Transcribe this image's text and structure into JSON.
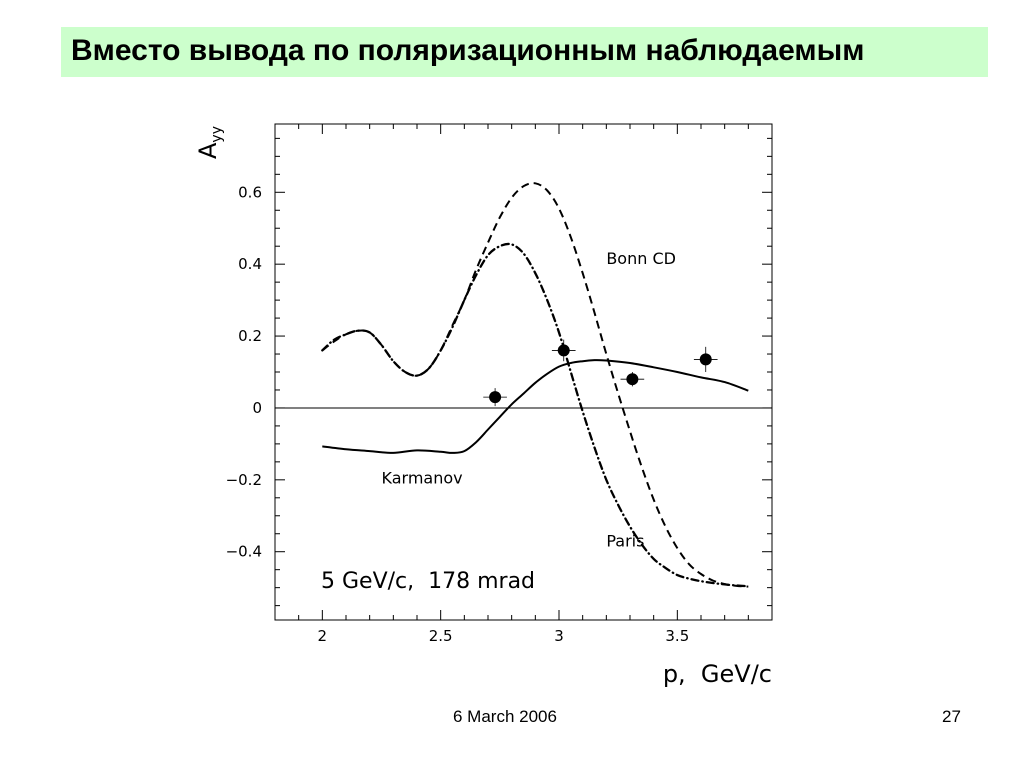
{
  "slide": {
    "title": "Вместо вывода по поляризационным наблюдаемым",
    "date": "6 March 2006",
    "page_number": "27"
  },
  "chart_data": {
    "type": "line",
    "title": "",
    "xlabel": "p,  GeV/c",
    "ylabel_main": "A",
    "ylabel_sub": "yy",
    "annotation": "5 GeV/c,  178 mrad",
    "xlim": [
      1.8,
      3.9
    ],
    "ylim": [
      -0.59,
      0.79
    ],
    "x_ticks": [
      2,
      2.5,
      3,
      3.5
    ],
    "x_tick_labels": [
      "2",
      "2.5",
      "3",
      "3.5"
    ],
    "y_ticks": [
      -0.4,
      -0.2,
      0,
      0.2,
      0.4,
      0.6
    ],
    "y_tick_labels": [
      "−0.4",
      "−0.2",
      "0",
      "0.2",
      "0.4",
      "0.6"
    ],
    "grid": false,
    "zero_line": true,
    "series": [
      {
        "name": "Bonn CD",
        "style": "dashed",
        "label_at": [
          3.2,
          0.4
        ],
        "points": [
          [
            2.0,
            0.16
          ],
          [
            2.05,
            0.185
          ],
          [
            2.1,
            0.205
          ],
          [
            2.15,
            0.215
          ],
          [
            2.2,
            0.21
          ],
          [
            2.25,
            0.175
          ],
          [
            2.3,
            0.13
          ],
          [
            2.35,
            0.1
          ],
          [
            2.4,
            0.09
          ],
          [
            2.45,
            0.11
          ],
          [
            2.5,
            0.16
          ],
          [
            2.55,
            0.23
          ],
          [
            2.6,
            0.3
          ],
          [
            2.65,
            0.385
          ],
          [
            2.7,
            0.46
          ],
          [
            2.75,
            0.53
          ],
          [
            2.8,
            0.585
          ],
          [
            2.85,
            0.617
          ],
          [
            2.9,
            0.625
          ],
          [
            2.95,
            0.605
          ],
          [
            3.0,
            0.555
          ],
          [
            3.05,
            0.475
          ],
          [
            3.1,
            0.375
          ],
          [
            3.15,
            0.265
          ],
          [
            3.2,
            0.15
          ],
          [
            3.25,
            0.04
          ],
          [
            3.3,
            -0.065
          ],
          [
            3.35,
            -0.165
          ],
          [
            3.4,
            -0.255
          ],
          [
            3.45,
            -0.33
          ],
          [
            3.5,
            -0.39
          ],
          [
            3.55,
            -0.435
          ],
          [
            3.6,
            -0.462
          ],
          [
            3.65,
            -0.48
          ],
          [
            3.7,
            -0.49
          ],
          [
            3.75,
            -0.495
          ],
          [
            3.8,
            -0.497
          ]
        ]
      },
      {
        "name": "Paris",
        "style": "dash-dot",
        "label_at": [
          3.2,
          -0.385
        ],
        "points": [
          [
            2.0,
            0.16
          ],
          [
            2.05,
            0.19
          ],
          [
            2.1,
            0.205
          ],
          [
            2.15,
            0.215
          ],
          [
            2.2,
            0.21
          ],
          [
            2.25,
            0.175
          ],
          [
            2.3,
            0.13
          ],
          [
            2.35,
            0.1
          ],
          [
            2.4,
            0.09
          ],
          [
            2.45,
            0.11
          ],
          [
            2.5,
            0.16
          ],
          [
            2.55,
            0.225
          ],
          [
            2.6,
            0.3
          ],
          [
            2.65,
            0.37
          ],
          [
            2.7,
            0.425
          ],
          [
            2.75,
            0.45
          ],
          [
            2.8,
            0.455
          ],
          [
            2.85,
            0.43
          ],
          [
            2.9,
            0.375
          ],
          [
            2.95,
            0.3
          ],
          [
            3.0,
            0.21
          ],
          [
            3.05,
            0.1
          ],
          [
            3.1,
            -0.01
          ],
          [
            3.15,
            -0.11
          ],
          [
            3.2,
            -0.2
          ],
          [
            3.25,
            -0.27
          ],
          [
            3.3,
            -0.33
          ],
          [
            3.35,
            -0.38
          ],
          [
            3.4,
            -0.42
          ],
          [
            3.45,
            -0.445
          ],
          [
            3.5,
            -0.465
          ],
          [
            3.55,
            -0.475
          ],
          [
            3.6,
            -0.482
          ],
          [
            3.65,
            -0.487
          ],
          [
            3.7,
            -0.491
          ],
          [
            3.75,
            -0.494
          ],
          [
            3.8,
            -0.496
          ]
        ]
      },
      {
        "name": "Karmanov",
        "style": "solid",
        "label_at": [
          2.25,
          -0.21
        ],
        "points": [
          [
            2.0,
            -0.107
          ],
          [
            2.1,
            -0.115
          ],
          [
            2.2,
            -0.12
          ],
          [
            2.3,
            -0.125
          ],
          [
            2.4,
            -0.118
          ],
          [
            2.5,
            -0.122
          ],
          [
            2.55,
            -0.125
          ],
          [
            2.6,
            -0.12
          ],
          [
            2.65,
            -0.095
          ],
          [
            2.7,
            -0.06
          ],
          [
            2.75,
            -0.025
          ],
          [
            2.8,
            0.01
          ],
          [
            2.85,
            0.04
          ],
          [
            2.9,
            0.07
          ],
          [
            2.95,
            0.095
          ],
          [
            3.0,
            0.115
          ],
          [
            3.05,
            0.125
          ],
          [
            3.1,
            0.13
          ],
          [
            3.15,
            0.133
          ],
          [
            3.2,
            0.132
          ],
          [
            3.3,
            0.125
          ],
          [
            3.4,
            0.113
          ],
          [
            3.5,
            0.1
          ],
          [
            3.6,
            0.085
          ],
          [
            3.7,
            0.072
          ],
          [
            3.8,
            0.048
          ]
        ]
      }
    ],
    "data_points": [
      {
        "x": 2.73,
        "y": 0.03,
        "xerr": 0.05,
        "yerr": 0.025
      },
      {
        "x": 3.02,
        "y": 0.16,
        "xerr": 0.05,
        "yerr": 0.03
      },
      {
        "x": 3.31,
        "y": 0.08,
        "xerr": 0.05,
        "yerr": 0.02
      },
      {
        "x": 3.62,
        "y": 0.135,
        "xerr": 0.05,
        "yerr": 0.035
      }
    ]
  }
}
